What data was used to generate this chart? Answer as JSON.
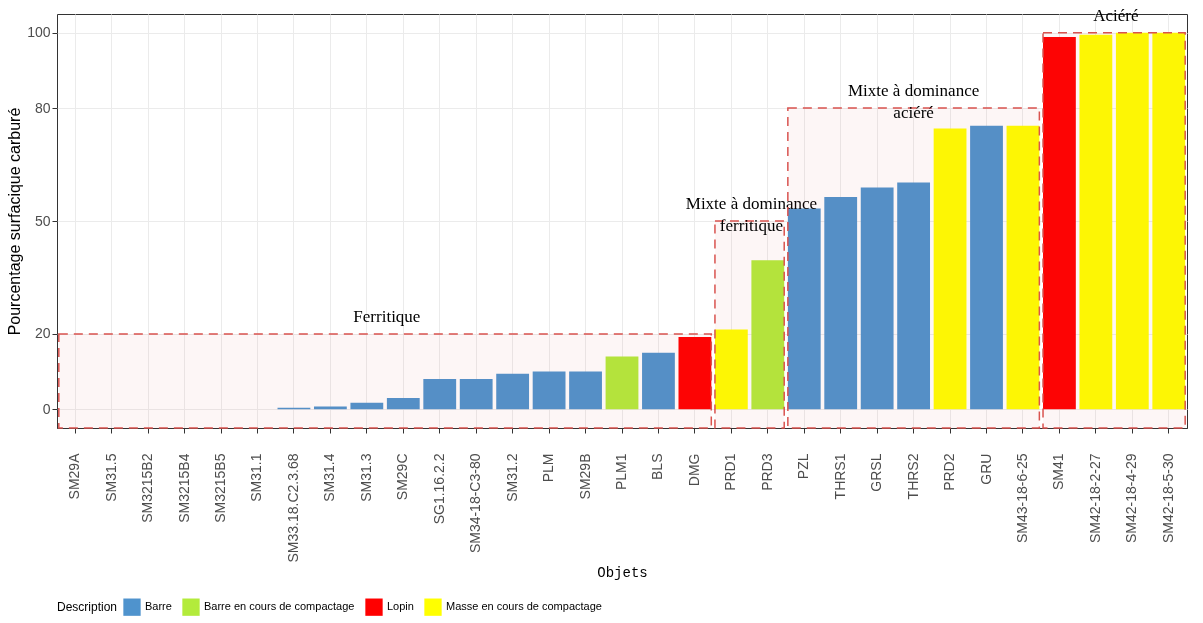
{
  "chart_data": {
    "type": "bar",
    "xlabel": "Objets",
    "ylabel": "Pourcentage surfacique carburé",
    "legend_title": "Description",
    "categories": [
      "SM29A",
      "SM31.5",
      "SM3215B2",
      "SM3215B4",
      "SM3215B5",
      "SM31.1",
      "SM33.18.C2.3.68",
      "SM31.4",
      "SM31.3",
      "SM29C",
      "SG1.16.2.2",
      "SM34-18-C3-80",
      "SM31.2",
      "PLM",
      "SM29B",
      "PLM1",
      "BLS",
      "DMG",
      "PRD1",
      "PRD3",
      "PZL",
      "THRS1",
      "GRSL",
      "THRS2",
      "PRD2",
      "GRU",
      "SM43-18-6-25",
      "SM41",
      "SM42-18-2-27",
      "SM42-18-4-29",
      "SM42-18-5-30"
    ],
    "series": [
      {
        "name": "Barre",
        "color": "#4f93cd",
        "values": [
          0,
          0,
          0,
          0,
          0,
          0,
          0.4,
          0.7,
          1.7,
          3,
          8,
          8,
          9.4,
          10,
          10,
          null,
          15,
          null,
          null,
          null,
          53.3,
          56.4,
          58.9,
          60.2,
          null,
          75.3,
          null,
          null,
          null,
          null,
          null
        ]
      },
      {
        "name": "Barre en cours de compactage",
        "color": "#b3eb3b",
        "values": [
          null,
          null,
          null,
          null,
          null,
          null,
          null,
          null,
          null,
          null,
          null,
          null,
          null,
          null,
          null,
          14,
          null,
          null,
          null,
          39.6,
          null,
          null,
          null,
          null,
          null,
          null,
          null,
          null,
          null,
          null,
          null
        ]
      },
      {
        "name": "Lopin",
        "color": "#ff0000",
        "values": [
          null,
          null,
          null,
          null,
          null,
          null,
          null,
          null,
          null,
          null,
          null,
          null,
          null,
          null,
          null,
          null,
          null,
          19.2,
          null,
          null,
          null,
          null,
          null,
          null,
          null,
          null,
          null,
          98.9,
          null,
          null,
          null
        ]
      },
      {
        "name": "Masse en cours de compactage",
        "color": "#ffff00",
        "values": [
          null,
          null,
          null,
          null,
          null,
          null,
          null,
          null,
          null,
          null,
          null,
          null,
          null,
          null,
          null,
          null,
          null,
          null,
          21.2,
          null,
          null,
          null,
          null,
          null,
          74.6,
          null,
          75.3,
          null,
          99.5,
          100,
          100
        ]
      }
    ],
    "ylim": [
      -5,
      105
    ],
    "yticks": [
      0,
      20,
      50,
      80,
      100
    ],
    "grid": true,
    "legend": "bottom",
    "bands": [
      {
        "axis": "x",
        "from": "SM29A",
        "to": "DMG",
        "label": "Ferritique",
        "color": "#d9534f"
      },
      {
        "axis": "x",
        "from": "PRD1",
        "to": "PRD3",
        "label": "Mixte à dominance\nferritique",
        "color": "#d9534f"
      },
      {
        "axis": "x",
        "from": "PZL",
        "to": "SM43-18-6-25",
        "label": "Mixte à dominance\naciéré",
        "color": "#d9534f"
      },
      {
        "axis": "x",
        "from": "SM41",
        "to": "SM42-18-5-30",
        "label": "Aciéré",
        "color": "#d9534f"
      }
    ]
  }
}
